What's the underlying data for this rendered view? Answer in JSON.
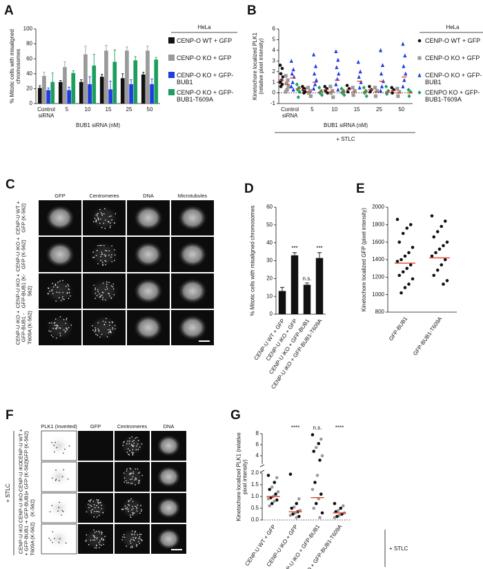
{
  "chart_data": [
    {
      "panel": "A",
      "type": "bar",
      "ylabel": "% Mitotic cells with misaligned chromosomes",
      "xlabel": "BUB1 siRNA (nM)",
      "categories": [
        "Control siRNA",
        "5",
        "10",
        "15",
        "25",
        "50"
      ],
      "legend_title": "HeLa",
      "legend": "right",
      "series": [
        {
          "name": "CENP-O WT + GFP",
          "color": "#111111",
          "values": [
            21,
            29,
            29,
            36,
            34,
            39
          ],
          "errors": [
            3,
            2,
            3,
            3,
            6,
            3
          ]
        },
        {
          "name": "CENP-O KO + GFP",
          "color": "#9a9a9a",
          "values": [
            37,
            49,
            66,
            71,
            71,
            71
          ],
          "errors": [
            5,
            7,
            11,
            7,
            5,
            6
          ]
        },
        {
          "name": "CENP-O KO + GFP-BUB1",
          "color": "#1f3ee0",
          "values": [
            18,
            18,
            26,
            19,
            26,
            26
          ],
          "errors": [
            3,
            4,
            10,
            11,
            6,
            7
          ]
        },
        {
          "name": "CENP-O KO + GFP-BUB1-T609A",
          "color": "#1e9e5e",
          "values": [
            29,
            41,
            51,
            56,
            58,
            59
          ],
          "errors": [
            12,
            3,
            15,
            16,
            5,
            3
          ]
        }
      ],
      "ylim": [
        0,
        100
      ],
      "yticks": [
        0,
        20,
        40,
        60,
        80,
        100
      ]
    },
    {
      "panel": "B",
      "type": "strip",
      "ylabel": "Kinetochore localized PLK1 (relative pixel intensity)",
      "xlabel": "BUB1 siRNA (nM)",
      "condition": "+ STLC",
      "categories": [
        "Control siRNA",
        "5",
        "10",
        "15",
        "25",
        "50"
      ],
      "legend_title": "HeLa",
      "legend": "right",
      "zero_line": true,
      "mean_color": "#e8402a",
      "series": [
        {
          "name": "CENP-O WT + GFP",
          "color": "#111111",
          "marker": "circle",
          "values": [
            [
              2.6,
              2.3,
              1.8,
              1.5,
              1.2,
              1.0,
              0.8,
              0.6
            ],
            [
              0.6,
              0.4,
              0.3,
              0.1,
              0
            ],
            [
              0.6,
              0.4,
              0.2,
              0
            ],
            [
              0.7,
              0.4,
              0.1
            ],
            [
              0.6,
              0.3,
              0.1
            ],
            [
              0.5,
              0.3,
              0
            ]
          ],
          "means": [
            1.2,
            0.3,
            0.3,
            0.3,
            0.3,
            0.2
          ]
        },
        {
          "name": "CENP-O KO + GFP",
          "color": "#9a9a9a",
          "marker": "square",
          "values": [
            [
              1.6,
              1.2,
              0.9,
              0.6,
              0.3,
              0.1
            ],
            [
              0.5,
              0.2,
              0,
              -0.3
            ],
            [
              0.6,
              0.2,
              0,
              -0.4
            ],
            [
              0.5,
              0.2,
              -0.2
            ],
            [
              0.5,
              0.2,
              -0.3
            ],
            [
              0.4,
              0.1,
              -0.3
            ]
          ],
          "means": [
            0.8,
            0.1,
            0.1,
            0.1,
            0.1,
            0
          ]
        },
        {
          "name": "CENP-O KO + GFP-BUB1",
          "color": "#1f3ee0",
          "marker": "triangle",
          "values": [
            [
              3.0,
              2.2,
              1.8,
              1.5,
              1.0,
              0.6,
              0.3
            ],
            [
              3.6,
              2.5,
              1.8,
              1.2,
              0.8,
              0.4
            ],
            [
              3.9,
              3.1,
              2.4,
              1.8,
              1.3,
              0.8,
              0.3
            ],
            [
              2.9,
              2.0,
              1.5,
              1.0,
              0.5
            ],
            [
              4.0,
              2.6,
              1.8,
              1.1,
              0.6,
              0.2
            ],
            [
              4.6,
              3.5,
              2.5,
              1.8,
              1.2,
              0.6
            ]
          ],
          "means": [
            1.4,
            1.0,
            1.2,
            1.1,
            1.1,
            1.5
          ]
        },
        {
          "name": "CENPO KO + GFP-BUB1-T609A",
          "color": "#1e9e5e",
          "marker": "diamond",
          "values": [
            [
              0.8,
              0.5,
              0.3,
              0.1,
              -0.4
            ],
            [
              0.5,
              0.2,
              0,
              -0.2
            ],
            [
              0.4,
              0.2,
              0,
              -0.2
            ],
            [
              0.5,
              0.2,
              0,
              -0.3
            ],
            [
              0.6,
              0.2,
              -0.1
            ],
            [
              0.3,
              0.1,
              -0.3
            ]
          ],
          "means": [
            0.4,
            0.1,
            0.1,
            0.1,
            0.1,
            0
          ]
        }
      ],
      "ylim": [
        -1,
        6
      ],
      "yticks": [
        -1,
        0,
        1,
        2,
        3,
        4,
        5,
        6
      ]
    },
    {
      "panel": "D",
      "type": "bar",
      "ylabel": "% Mitotic cells with misaligned chromosomes",
      "categories": [
        "CENP-U WT + GFP",
        "CENP-U iKO + GFP",
        "CENP-U iKO + GFP-BUB1",
        "CENP-U iKO + GFP-BUB1-T609A"
      ],
      "values": [
        13,
        33,
        16.5,
        31.5
      ],
      "errors": [
        2,
        1.5,
        1,
        3
      ],
      "color": "#111111",
      "annotations": [
        null,
        "***",
        "n.s.",
        "***"
      ],
      "ylim": [
        0,
        60
      ],
      "yticks": [
        0,
        10,
        20,
        30,
        40,
        50,
        60
      ]
    },
    {
      "panel": "E",
      "type": "strip",
      "ylabel": "Kinetochore localized GFP (pixel intensity)",
      "categories": [
        "GFP-BUB1",
        "GFP-BUB1-T609A"
      ],
      "color": "#111111",
      "mean_color": "#e8402a",
      "values": [
        [
          1860,
          1800,
          1760,
          1700,
          1600,
          1540,
          1480,
          1440,
          1400,
          1380,
          1340,
          1300,
          1260,
          1220,
          1180,
          1120,
          1080,
          1020
        ],
        [
          1900,
          1840,
          1780,
          1720,
          1660,
          1600,
          1560,
          1520,
          1480,
          1440,
          1400,
          1340,
          1280,
          1220,
          1160,
          1120
        ]
      ],
      "means": [
        1360,
        1420
      ],
      "ylim": [
        800,
        2000
      ],
      "yticks": [
        800,
        1000,
        1200,
        1400,
        1600,
        1800,
        2000
      ]
    },
    {
      "panel": "G",
      "type": "strip",
      "ylabel": "Kinetochore localized PLK1 (relative pixel intensity)",
      "condition": "+ STLC",
      "categories": [
        "CENP-U WT + GFP",
        "CENP-U iKO + GFP",
        "CENP-U iKO + GFP-BUB1",
        "CENP-U iKO + GFP-BUB1-T609A"
      ],
      "point_colors": [
        "#111111",
        "#9a9a9a"
      ],
      "mean_color": "#e8402a",
      "zero_line": true,
      "values": [
        [
          1.9,
          1.8,
          1.6,
          1.4,
          1.3,
          1.2,
          1.1,
          1.0,
          0.95,
          0.9,
          0.85,
          0.8,
          0.7,
          0.6
        ],
        [
          1.95,
          0.9,
          0.7,
          0.55,
          0.5,
          0.4,
          0.35,
          0.3,
          0.25,
          0.2,
          0.15,
          0.1
        ],
        [
          7.8,
          7.0,
          6.2,
          5.5,
          4.8,
          4.0,
          3.2,
          1.9,
          1.6,
          1.3,
          1.1,
          0.9,
          0.7,
          0.5,
          0.3,
          0.1
        ],
        [
          0.7,
          0.6,
          0.5,
          0.4,
          0.35,
          0.3,
          0.25,
          0.2,
          0.15,
          0.1
        ]
      ],
      "means": [
        1.0,
        0.35,
        0.95,
        0.3
      ],
      "annotations": [
        null,
        "****",
        "n.s.",
        "****"
      ],
      "ylim": [
        0,
        2
      ],
      "yticks": [
        {
          "value": 0,
          "label": "0.0"
        },
        {
          "value": 0.5,
          "label": "0.5"
        },
        {
          "value": 1,
          "label": "1.0"
        },
        {
          "value": 1.5,
          "label": "1.5"
        },
        {
          "value": 2,
          "label": "2.0"
        }
      ],
      "break": {
        "ylim": [
          2.5,
          8
        ],
        "yticks": [
          4,
          6,
          8
        ]
      }
    }
  ],
  "image_panels": [
    {
      "panel": "C",
      "columns": [
        "GFP",
        "Centromeres",
        "DNA",
        "Microtubules"
      ],
      "rows": [
        "CENP-U WT + GFP (K-562)",
        "CENP-U iKO + GFP (K-562)",
        "CENP-U iKO + GFP-BUB1 (K-562)",
        "CENP-U iKO + GFP-BUB1 -T609A (K-562)"
      ]
    },
    {
      "panel": "F",
      "columns": [
        "PLK1 (Inverted)",
        "GFP",
        "Centromeres",
        "DNA"
      ],
      "condition": "+ STLC",
      "rows": [
        "CENP-U WT + GFP (K-562)",
        "CENP-U iKO + GFP (K-562)",
        "CENP-U iKO + GFP-BUB1 (K-562)",
        "CENP-U iKO + GFP-BUB1 -T609A (K-562)"
      ]
    }
  ]
}
